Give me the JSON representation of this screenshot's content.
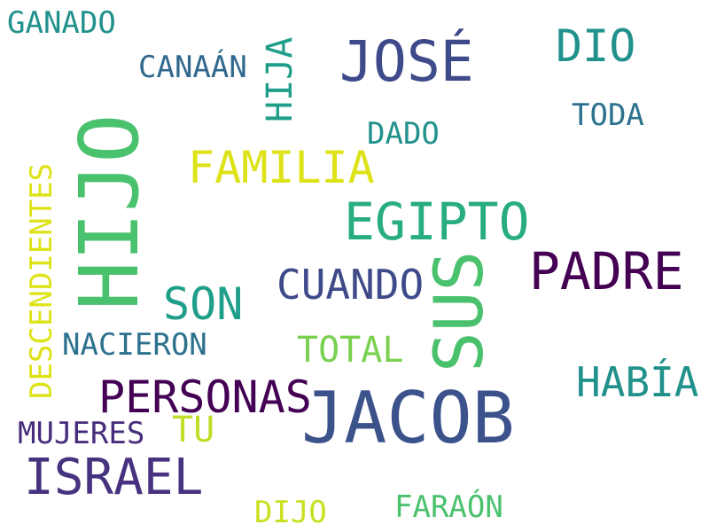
{
  "background_color": "#ffffff",
  "words": {
    "ganado": {
      "text": "GANADO",
      "color": "#21918c"
    },
    "canaan": {
      "text": "CANAÁN",
      "color": "#31688e"
    },
    "jose": {
      "text": "JOSÉ",
      "color": "#3e4a89"
    },
    "dio": {
      "text": "DIO",
      "color": "#21918c"
    },
    "dado": {
      "text": "DADO",
      "color": "#21918c"
    },
    "toda": {
      "text": "TODA",
      "color": "#2c728e"
    },
    "familia": {
      "text": "FAMILIA",
      "color": "#dde318"
    },
    "egipto": {
      "text": "EGIPTO",
      "color": "#27ad81"
    },
    "padre": {
      "text": "PADRE",
      "color": "#440154"
    },
    "son": {
      "text": "SON",
      "color": "#1f9e89"
    },
    "cuando": {
      "text": "CUANDO",
      "color": "#3e4a89"
    },
    "nacieron": {
      "text": "NACIERON",
      "color": "#2c728e"
    },
    "total": {
      "text": "TOTAL",
      "color": "#7ad151"
    },
    "habia": {
      "text": "HABÍA",
      "color": "#21918c"
    },
    "personas": {
      "text": "PERSONAS",
      "color": "#440154"
    },
    "jacob": {
      "text": "JACOB",
      "color": "#3b528b"
    },
    "tu": {
      "text": "TU",
      "color": "#bddf26"
    },
    "mujeres": {
      "text": "MUJERES",
      "color": "#472d7b"
    },
    "israel": {
      "text": "ISRAEL",
      "color": "#46327e"
    },
    "farao": {
      "text": "FARAÓN",
      "color": "#4ac16d"
    },
    "dijo": {
      "text": "DIJO",
      "color": "#c8e020"
    },
    "hijo": {
      "text": "HIJO",
      "color": "#4ac16d"
    },
    "hija": {
      "text": "HIJA",
      "color": "#1f9e89"
    },
    "sus": {
      "text": "SUS",
      "color": "#4ac16d"
    },
    "descend": {
      "text": "DESCENDIENTES",
      "color": "#dde318"
    }
  }
}
